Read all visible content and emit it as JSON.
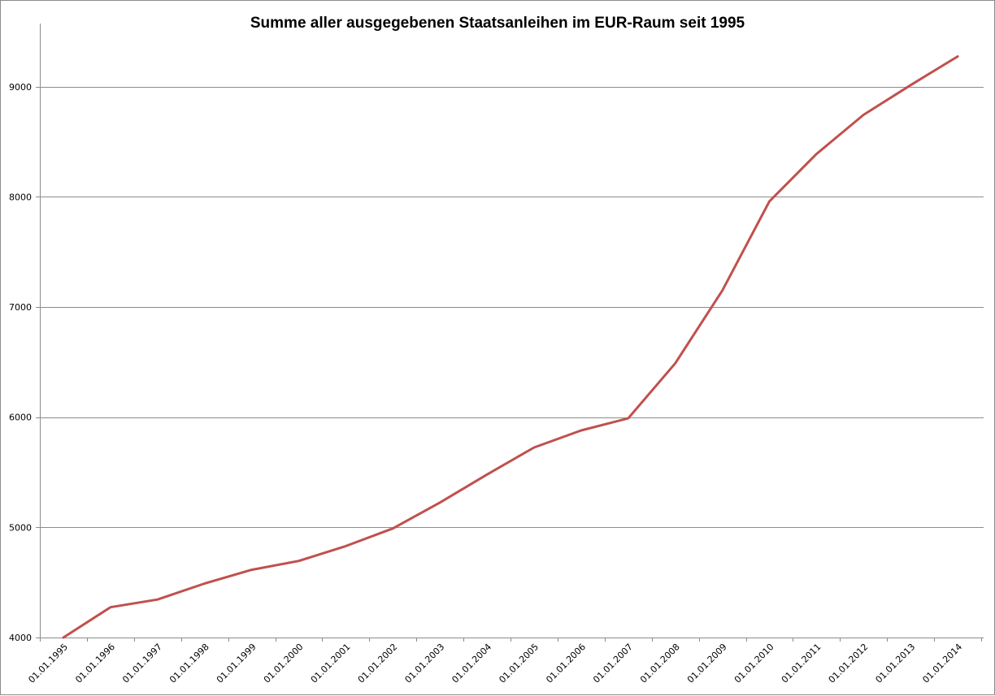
{
  "chart_data": {
    "type": "line",
    "title": "Summe aller ausgegebenen Staatsanleihen im EUR-Raum seit 1995",
    "xlabel": "",
    "ylabel": "",
    "ylim": [
      4000,
      9500
    ],
    "yticks": [
      4000,
      5000,
      6000,
      7000,
      8000,
      9000
    ],
    "grid": true,
    "legend": "none",
    "categories": [
      "01.01.1995",
      "01.01.1996",
      "01.01.1997",
      "01.01.1998",
      "01.01.1999",
      "01.01.2000",
      "01.01.2001",
      "01.01.2002",
      "01.01.2003",
      "01.01.2004",
      "01.01.2005",
      "01.01.2006",
      "01.01.2007",
      "01.01.2008",
      "01.01.2009",
      "01.01.2010",
      "01.01.2011",
      "01.01.2012",
      "01.01.2013",
      "01.01.2014"
    ],
    "series": [
      {
        "color": "#c0504d",
        "values": [
          4000,
          4275,
          4345,
          4490,
          4615,
          4695,
          4830,
          4990,
          5225,
          5480,
          5725,
          5880,
          5990,
          6490,
          7150,
          7960,
          8390,
          8745,
          9015,
          9275
        ]
      }
    ]
  }
}
